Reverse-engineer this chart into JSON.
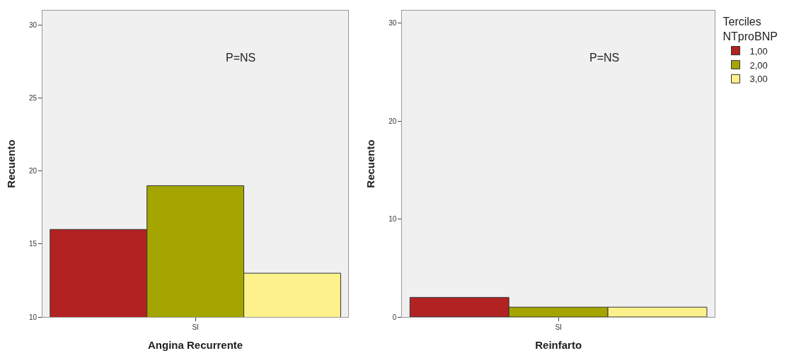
{
  "chart_data": [
    {
      "type": "bar",
      "xlabel": "Angina Recurrente",
      "ylabel": "Recuento",
      "categories": [
        "SI"
      ],
      "series": [
        {
          "color": "#b22222",
          "values": [
            16
          ]
        },
        {
          "color": "#a5a500",
          "values": [
            19
          ]
        },
        {
          "color": "#fdf18c",
          "values": [
            13
          ]
        }
      ],
      "ylim": [
        10,
        31
      ],
      "yticks": [
        10,
        15,
        20,
        25,
        30
      ],
      "annotations": [
        "P=NS"
      ],
      "legend": false,
      "grid": false
    },
    {
      "type": "bar",
      "xlabel": "Reinfarto",
      "ylabel": "Recuento",
      "categories": [
        "SI"
      ],
      "legend_title": "Terciles NTproBNP",
      "series": [
        {
          "name": "1,00",
          "color": "#b22222",
          "values": [
            2
          ]
        },
        {
          "name": "2,00",
          "color": "#a5a500",
          "values": [
            1
          ]
        },
        {
          "name": "3,00",
          "color": "#fdf18c",
          "values": [
            1
          ]
        }
      ],
      "ylim": [
        0,
        31.3
      ],
      "yticks": [
        0,
        10,
        20,
        30
      ],
      "annotations": [
        "P=NS"
      ],
      "legend": "top right",
      "grid": false
    }
  ]
}
